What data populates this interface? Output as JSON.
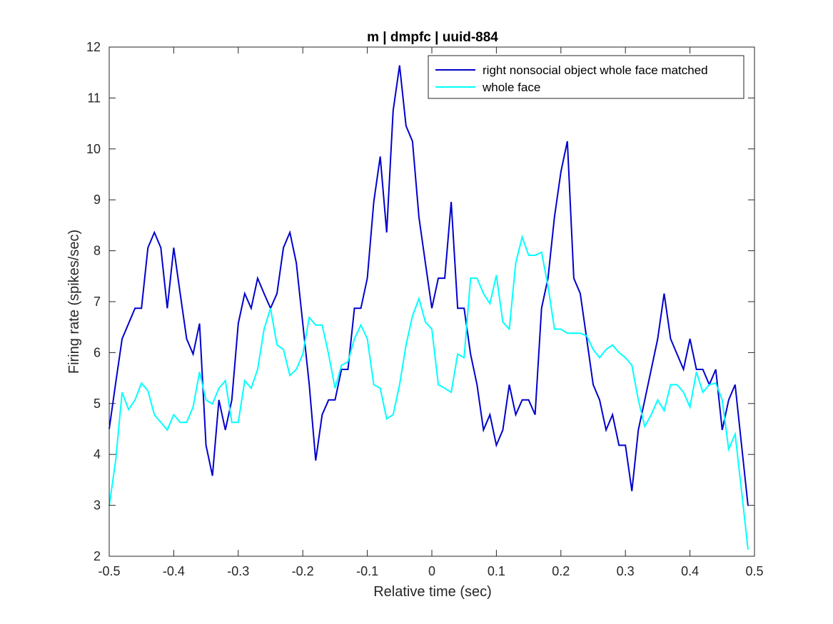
{
  "chart_data": {
    "type": "line",
    "title": "m | dmpfc | uuid-884",
    "xlabel": "Relative time (sec)",
    "ylabel": "Firing rate (spikes/sec)",
    "xlim": [
      -0.5,
      0.5
    ],
    "ylim": [
      2,
      12
    ],
    "xticks": [
      -0.5,
      -0.4,
      -0.3,
      -0.2,
      -0.1,
      0,
      0.1,
      0.2,
      0.3,
      0.4,
      0.5
    ],
    "xtick_labels": [
      "-0.5",
      "-0.4",
      "-0.3",
      "-0.2",
      "-0.1",
      "0",
      "0.1",
      "0.2",
      "0.3",
      "0.4",
      "0.5"
    ],
    "yticks": [
      2,
      3,
      4,
      5,
      6,
      7,
      8,
      9,
      10,
      11,
      12
    ],
    "ytick_labels": [
      "2",
      "3",
      "4",
      "5",
      "6",
      "7",
      "8",
      "9",
      "10",
      "11",
      "12"
    ],
    "grid": false,
    "legend_position": "top-right",
    "x": [
      -0.5,
      -0.49,
      -0.48,
      -0.47,
      -0.46,
      -0.45,
      -0.44,
      -0.43,
      -0.42,
      -0.41,
      -0.4,
      -0.39,
      -0.38,
      -0.37,
      -0.36,
      -0.35,
      -0.34,
      -0.33,
      -0.32,
      -0.31,
      -0.3,
      -0.29,
      -0.28,
      -0.27,
      -0.26,
      -0.25,
      -0.24,
      -0.23,
      -0.22,
      -0.21,
      -0.2,
      -0.19,
      -0.18,
      -0.17,
      -0.16,
      -0.15,
      -0.14,
      -0.13,
      -0.12,
      -0.11,
      -0.1,
      -0.09,
      -0.08,
      -0.07,
      -0.06,
      -0.05,
      -0.04,
      -0.03,
      -0.02,
      -0.01,
      0,
      0.01,
      0.02,
      0.03,
      0.04,
      0.05,
      0.06,
      0.07,
      0.08,
      0.09,
      0.1,
      0.11,
      0.12,
      0.13,
      0.14,
      0.15,
      0.16,
      0.17,
      0.18,
      0.19,
      0.2,
      0.21,
      0.22,
      0.23,
      0.24,
      0.25,
      0.26,
      0.27,
      0.28,
      0.29,
      0.3,
      0.31,
      0.32,
      0.33,
      0.34,
      0.35,
      0.36,
      0.37,
      0.38,
      0.39,
      0.4,
      0.41,
      0.42,
      0.43,
      0.44,
      0.45,
      0.46,
      0.47,
      0.48,
      0.49
    ],
    "series": [
      {
        "name": "right nonsocial object whole face matched",
        "color": "#0000cd",
        "values": [
          4.5,
          5.4,
          6.27,
          6.57,
          6.87,
          6.87,
          8.06,
          8.36,
          8.06,
          6.87,
          8.06,
          7.16,
          6.27,
          5.97,
          6.57,
          4.18,
          3.58,
          5.07,
          4.48,
          5.07,
          6.57,
          7.16,
          6.87,
          7.46,
          7.16,
          6.87,
          7.16,
          8.06,
          8.36,
          7.76,
          6.57,
          5.37,
          3.88,
          4.78,
          5.07,
          5.07,
          5.67,
          5.67,
          6.87,
          6.87,
          7.46,
          8.96,
          9.85,
          8.36,
          10.75,
          11.64,
          10.45,
          10.15,
          8.66,
          7.76,
          6.87,
          7.46,
          7.46,
          8.96,
          6.87,
          6.87,
          5.97,
          5.37,
          4.48,
          4.78,
          4.18,
          4.48,
          5.37,
          4.78,
          5.07,
          5.07,
          4.78,
          6.87,
          7.46,
          8.66,
          9.55,
          10.15,
          7.46,
          7.16,
          6.27,
          5.37,
          5.07,
          4.48,
          4.78,
          4.18,
          4.18,
          3.28,
          4.48,
          5.07,
          5.67,
          6.27,
          7.16,
          6.27,
          5.97,
          5.67,
          6.27,
          5.67,
          5.67,
          5.37,
          5.67,
          4.48,
          5.07,
          5.37,
          4.18,
          2.99
        ]
      },
      {
        "name": "whole face",
        "color": "#00ffff",
        "values": [
          2.99,
          3.88,
          5.22,
          4.88,
          5.07,
          5.4,
          5.25,
          4.78,
          4.63,
          4.48,
          4.78,
          4.63,
          4.63,
          4.93,
          5.62,
          5.07,
          4.99,
          5.3,
          5.45,
          4.63,
          4.63,
          5.45,
          5.3,
          5.67,
          6.46,
          6.87,
          6.15,
          6.06,
          5.55,
          5.67,
          5.97,
          6.69,
          6.54,
          6.54,
          5.97,
          5.3,
          5.75,
          5.82,
          6.27,
          6.54,
          6.27,
          5.37,
          5.3,
          4.7,
          4.78,
          5.37,
          6.15,
          6.72,
          7.06,
          6.6,
          6.46,
          5.37,
          5.3,
          5.22,
          5.97,
          5.9,
          7.46,
          7.46,
          7.16,
          6.96,
          7.52,
          6.6,
          6.46,
          7.76,
          8.27,
          7.91,
          7.91,
          7.97,
          7.31,
          6.46,
          6.46,
          6.38,
          6.38,
          6.38,
          6.33,
          6.06,
          5.9,
          6.06,
          6.15,
          6.0,
          5.9,
          5.75,
          5.07,
          4.55,
          4.78,
          5.07,
          4.86,
          5.37,
          5.37,
          5.22,
          4.93,
          5.62,
          5.22,
          5.37,
          5.4,
          5.07,
          4.1,
          4.4,
          3.28,
          2.13
        ]
      }
    ]
  }
}
